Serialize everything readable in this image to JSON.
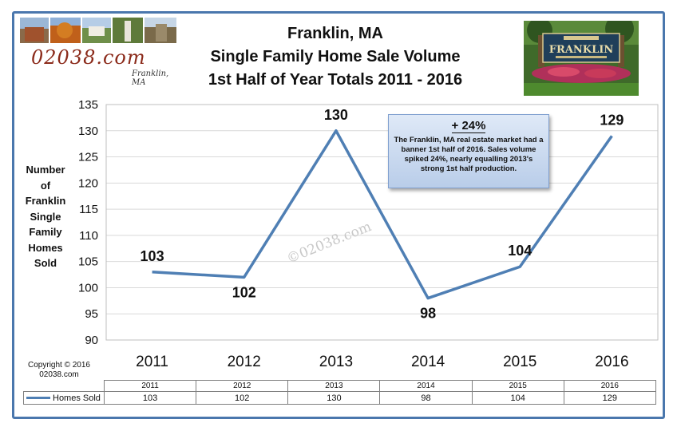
{
  "header": {
    "title_lines": [
      "Franklin, MA",
      "Single Family Home Sale Volume",
      "1st Half of Year Totals 2011 - 2016"
    ],
    "logo_text": "02038.com",
    "logo_sub": "Franklin, MA"
  },
  "sign_photo": {
    "caption": "FRANKLIN"
  },
  "y_axis_label_lines": [
    "Number",
    "of",
    "Franklin",
    "Single",
    "Family",
    "Homes",
    "Sold"
  ],
  "callout": {
    "heading": "+ 24%",
    "text": "The Franklin, MA real estate market had a banner 1st half of 2016. Sales volume spiked 24%, nearly equalling 2013's strong 1st half production."
  },
  "watermark": "©02038.com",
  "copyright_lines": [
    "Copyright © 2016",
    "02038.com"
  ],
  "colors": {
    "line": "#4f7fb4",
    "frame": "#4a77ad",
    "grid": "#d9d9d9"
  },
  "chart_data": {
    "type": "line",
    "title": "Franklin, MA Single Family Home Sale Volume 1st Half of Year Totals 2011 - 2016",
    "categories": [
      "2011",
      "2012",
      "2013",
      "2014",
      "2015",
      "2016"
    ],
    "series": [
      {
        "name": "Homes Sold",
        "values": [
          103,
          102,
          130,
          98,
          104,
          129
        ]
      }
    ],
    "ylim": [
      90,
      135
    ],
    "yticks": [
      90,
      95,
      100,
      105,
      110,
      115,
      120,
      125,
      130,
      135
    ],
    "ylabel": "Number of Franklin Single Family Homes Sold",
    "xlabel": "",
    "grid": true,
    "data_table": true
  }
}
